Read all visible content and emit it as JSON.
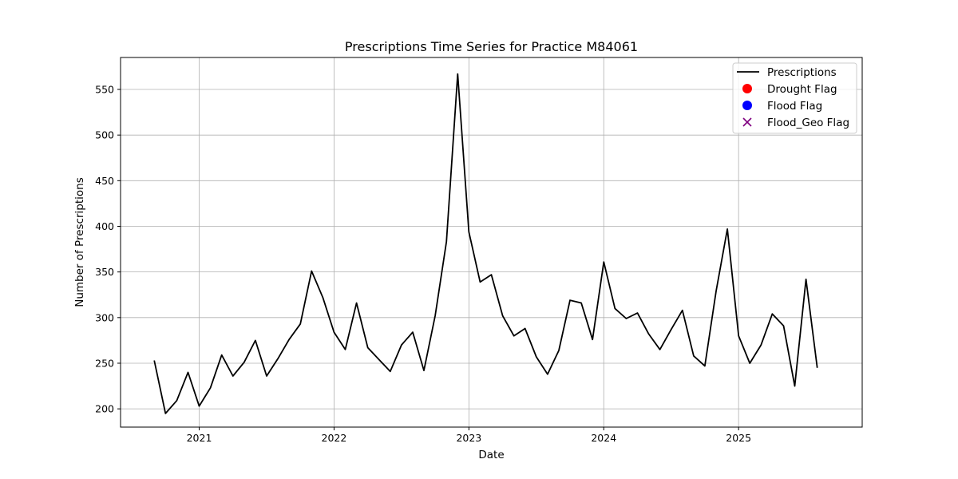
{
  "chart_data": {
    "type": "line",
    "title": "Prescriptions Time Series for Practice M84061",
    "xlabel": "Date",
    "ylabel": "Number of Prescriptions",
    "ylim": [
      180,
      585
    ],
    "xlim": [
      "2020-06",
      "2025-12"
    ],
    "x_ticks": [
      "2021",
      "2022",
      "2023",
      "2024",
      "2025"
    ],
    "y_ticks": [
      200,
      250,
      300,
      350,
      400,
      450,
      500,
      550
    ],
    "grid": true,
    "legend_position": "top-right",
    "series": [
      {
        "name": "Prescriptions",
        "color": "#000000",
        "x": [
          "2020-09",
          "2020-10",
          "2020-11",
          "2020-12",
          "2021-01",
          "2021-02",
          "2021-03",
          "2021-04",
          "2021-05",
          "2021-06",
          "2021-07",
          "2021-08",
          "2021-09",
          "2021-10",
          "2021-11",
          "2021-12",
          "2022-01",
          "2022-02",
          "2022-03",
          "2022-04",
          "2022-05",
          "2022-06",
          "2022-07",
          "2022-08",
          "2022-09",
          "2022-10",
          "2022-11",
          "2022-12",
          "2023-01",
          "2023-02",
          "2023-03",
          "2023-04",
          "2023-05",
          "2023-06",
          "2023-07",
          "2023-08",
          "2023-09",
          "2023-10",
          "2023-11",
          "2023-12",
          "2024-01",
          "2024-02",
          "2024-03",
          "2024-04",
          "2024-05",
          "2024-06",
          "2024-07",
          "2024-08",
          "2024-09",
          "2024-10",
          "2024-11",
          "2024-12",
          "2025-01",
          "2025-02",
          "2025-03",
          "2025-04",
          "2025-05",
          "2025-06",
          "2025-07",
          "2025-08"
        ],
        "values": [
          253,
          195,
          209,
          240,
          203,
          223,
          259,
          236,
          251,
          275,
          236,
          255,
          276,
          293,
          351,
          322,
          284,
          265,
          316,
          267,
          254,
          241,
          270,
          284,
          242,
          302,
          383,
          567,
          394,
          339,
          347,
          302,
          280,
          288,
          257,
          238,
          264,
          319,
          316,
          276,
          361,
          310,
          299,
          305,
          282,
          265,
          287,
          308,
          258,
          247,
          329,
          397,
          280,
          250,
          270,
          304,
          291,
          225,
          342,
          245
        ]
      },
      {
        "name": "Drought Flag",
        "color": "#ff0000",
        "marker": "circle",
        "x": [],
        "values": []
      },
      {
        "name": "Flood Flag",
        "color": "#0000ff",
        "marker": "circle",
        "x": [],
        "values": []
      },
      {
        "name": "Flood_Geo Flag",
        "color": "#800080",
        "marker": "x",
        "x": [],
        "values": []
      }
    ]
  }
}
